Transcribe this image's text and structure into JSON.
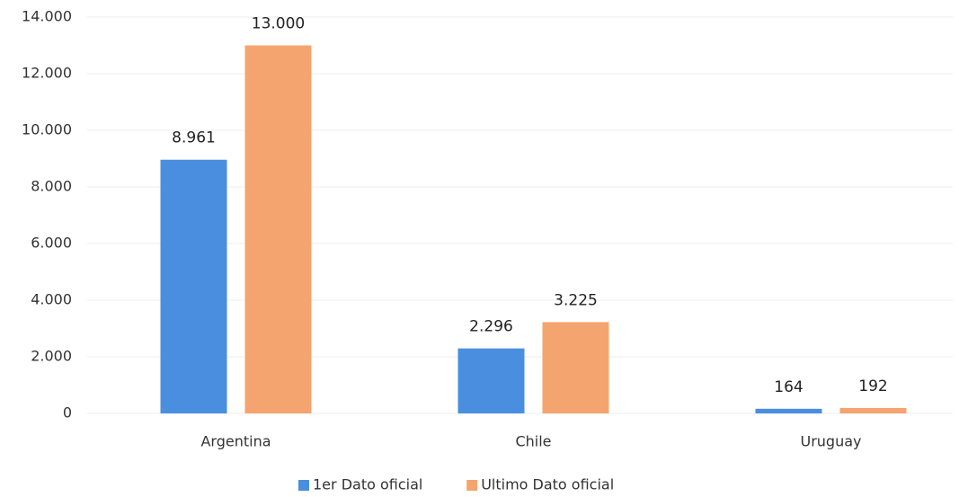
{
  "chart_data": {
    "type": "bar",
    "categories": [
      "Argentina",
      "Chile",
      "Uruguay"
    ],
    "series": [
      {
        "name": "1er Dato oficial",
        "color": "#4a8fdf",
        "values": [
          8961,
          2296,
          164
        ],
        "value_labels": [
          "8.961",
          "2.296",
          "164"
        ]
      },
      {
        "name": "Ultimo Dato oficial",
        "color": "#f4a46f",
        "values": [
          13000,
          3225,
          192
        ],
        "value_labels": [
          "13.000",
          "3.225",
          "192"
        ]
      }
    ],
    "ylim": [
      0,
      14000
    ],
    "yticks": [
      0,
      {
        "value": 2000,
        "label": "2.000"
      },
      {
        "value": 4000,
        "label": "4.000"
      },
      {
        "value": 6000,
        "label": "6.000"
      },
      {
        "value": 8000,
        "label": "8.000"
      },
      {
        "value": 10000,
        "label": "10.000"
      },
      {
        "value": 12000,
        "label": "12.000"
      },
      {
        "value": 14000,
        "label": "14.000"
      }
    ],
    "grid": true,
    "legend": "bottom"
  }
}
